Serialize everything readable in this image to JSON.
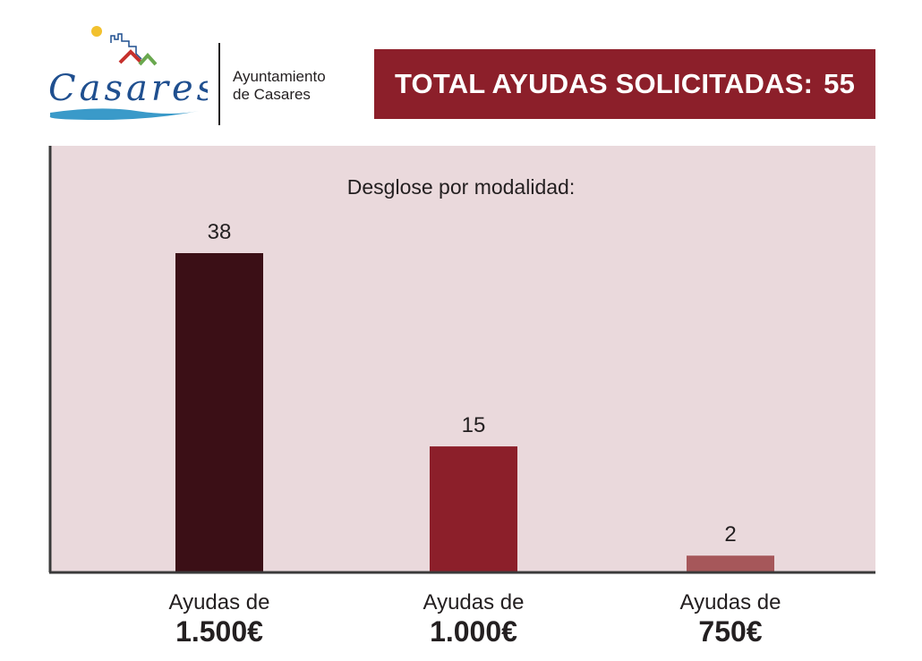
{
  "header": {
    "logo_text": "Casares",
    "org_name": "Ayuntamiento\nde Casares",
    "total_label": "TOTAL AYUDAS SOLICITADAS:",
    "total_value": "55"
  },
  "colors": {
    "banner": "#8c1f2a",
    "chart_background": "#ead9dc",
    "logo_blue": "#1f4f8f",
    "logo_wave": "#3a9ac9",
    "logo_sun": "#f2c12e",
    "logo_roof_red": "#c6312d",
    "logo_roof_green": "#6aa84f"
  },
  "chart_data": {
    "type": "bar",
    "title": "Desglose por modalidad:",
    "xlabel": "",
    "ylabel": "",
    "categories": [
      {
        "line1": "Ayudas de",
        "line2": "1.500€"
      },
      {
        "line1": "Ayudas de",
        "line2": "1.000€"
      },
      {
        "line1": "Ayudas de",
        "line2": "750€"
      }
    ],
    "values": [
      38,
      15,
      2
    ],
    "data_labels": [
      "38",
      "15",
      "2"
    ],
    "bar_colors": [
      "#3b0f16",
      "#8c1f2a",
      "#a6575a"
    ],
    "ylim": [
      0,
      42
    ],
    "grid": false,
    "legend": "none"
  }
}
